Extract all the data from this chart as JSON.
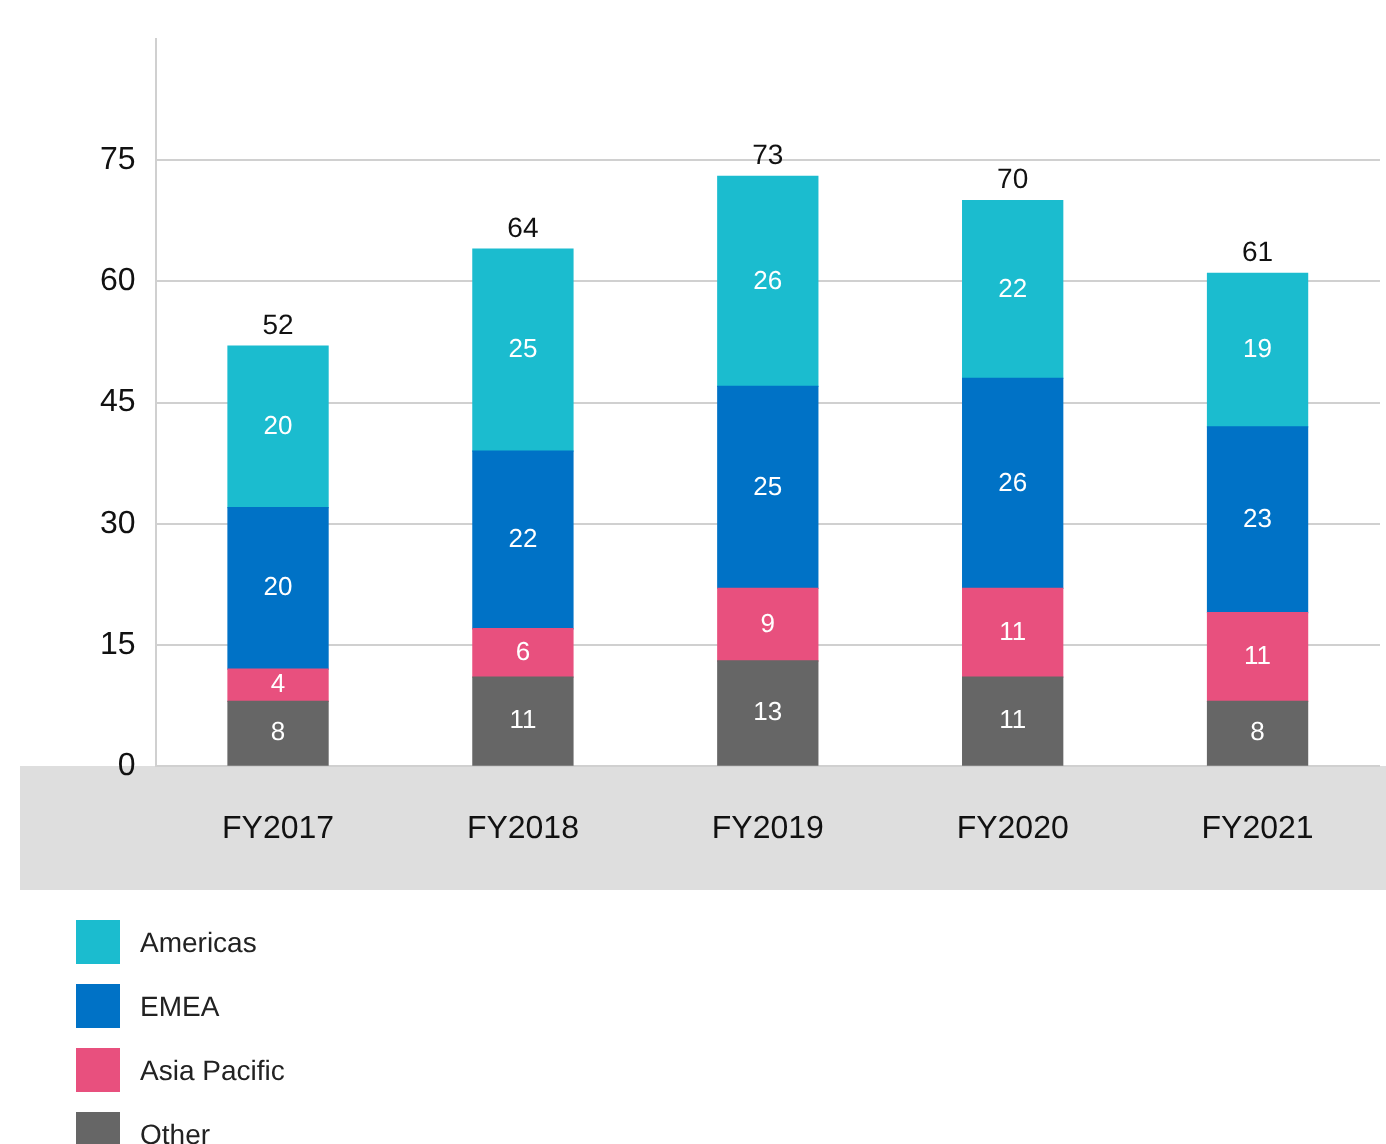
{
  "chart_data": {
    "type": "bar",
    "stacked": true,
    "categories": [
      "FY2017",
      "FY2018",
      "FY2019",
      "FY2020",
      "FY2021"
    ],
    "series": [
      {
        "name": "Other",
        "color": "#666666",
        "values": [
          8,
          11,
          13,
          11,
          8
        ]
      },
      {
        "name": "Asia Pacific",
        "color": "#e8507e",
        "values": [
          4,
          6,
          9,
          11,
          11
        ]
      },
      {
        "name": "EMEA",
        "color": "#0072c6",
        "values": [
          20,
          22,
          25,
          26,
          23
        ]
      },
      {
        "name": "Americas",
        "color": "#1bbccf",
        "values": [
          20,
          25,
          26,
          22,
          19
        ]
      }
    ],
    "ylim": [
      0,
      90
    ],
    "yticks": [
      0,
      15,
      30,
      45,
      60,
      75
    ],
    "grid": "y",
    "data_labels": true,
    "totals": [
      "52",
      "64",
      "73",
      "70",
      "61"
    ],
    "legend": "bottom left"
  }
}
